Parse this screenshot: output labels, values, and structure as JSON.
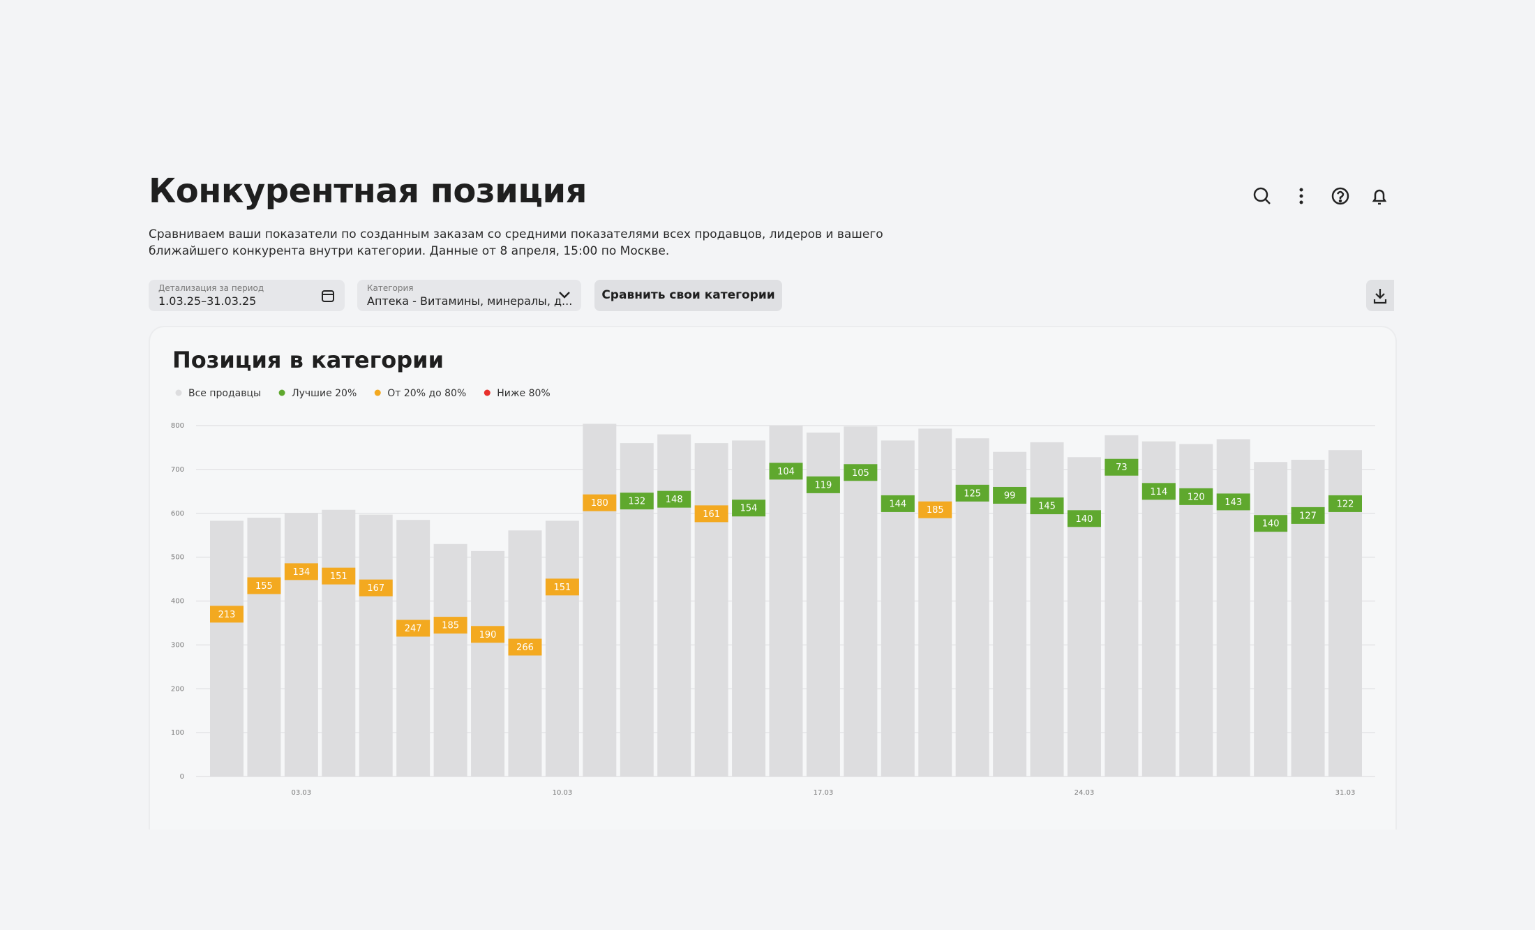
{
  "header": {
    "title": "Конкурентная позиция",
    "description": [
      "Сравниваем ваши показатели по созданным заказам со средними показателями всех продавцов, лидеров и вашего",
      "ближайшего конкурента внутри категории. Данные от 8 апреля, 15:00 по Москве."
    ]
  },
  "filters": {
    "period": {
      "label": "Детализация за период",
      "value": "1.03.25–31.03.25"
    },
    "category": {
      "label": "Категория",
      "value": "Аптека - Витамины, минералы, д..."
    },
    "compare_button": "Сравнить свои категории"
  },
  "chart_data": {
    "type": "bar",
    "title": "Позиция в категории",
    "categories": [
      null,
      null,
      "03.03",
      null,
      null,
      null,
      null,
      null,
      null,
      "10.03",
      null,
      null,
      null,
      null,
      null,
      null,
      "17.03",
      null,
      null,
      null,
      null,
      null,
      null,
      "24.03",
      null,
      null,
      null,
      null,
      null,
      null,
      "31.03"
    ],
    "series": [
      {
        "name": "Все продавцы",
        "color": "#dddddf",
        "values": [
          583,
          590,
          601,
          608,
          597,
          585,
          530,
          514,
          561,
          583,
          804,
          760,
          780,
          760,
          766,
          800,
          784,
          798,
          766,
          793,
          771,
          740,
          762,
          728,
          778,
          764,
          758,
          769,
          717,
          722,
          744
        ]
      }
    ],
    "positions": {
      "values": [
        213,
        155,
        134,
        151,
        167,
        247,
        185,
        190,
        266,
        151,
        180,
        132,
        148,
        161,
        154,
        104,
        119,
        105,
        144,
        185,
        125,
        99,
        145,
        140,
        73,
        114,
        120,
        143,
        140,
        127,
        122
      ],
      "colors": [
        "#f3a920",
        "#f3a920",
        "#f3a920",
        "#f3a920",
        "#f3a920",
        "#f3a920",
        "#f3a920",
        "#f3a920",
        "#f3a920",
        "#f3a920",
        "#f3a920",
        "#5fa82e",
        "#5fa82e",
        "#f3a920",
        "#5fa82e",
        "#5fa82e",
        "#5fa82e",
        "#5fa82e",
        "#5fa82e",
        "#f3a920",
        "#5fa82e",
        "#5fa82e",
        "#5fa82e",
        "#5fa82e",
        "#5fa82e",
        "#5fa82e",
        "#5fa82e",
        "#5fa82e",
        "#5fa82e",
        "#5fa82e",
        "#5fa82e"
      ]
    },
    "position_legend": [
      {
        "name": "Лучшие 20%",
        "color": "#5fa82e"
      },
      {
        "name": "От 20% до 80%",
        "color": "#f3a920"
      },
      {
        "name": "Ниже 80%",
        "color": "#e8302c"
      }
    ],
    "ylim": [
      0,
      800
    ],
    "yticks": [
      0,
      100,
      200,
      300,
      400,
      500,
      600,
      700,
      800
    ],
    "grid": true
  }
}
